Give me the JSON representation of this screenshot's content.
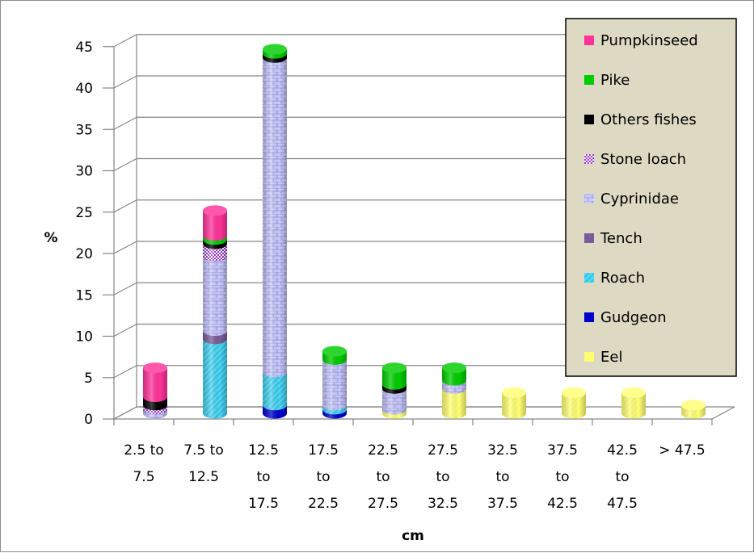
{
  "chart_data": {
    "type": "bar",
    "stacked": true,
    "style": "3d-cylinder",
    "ylabel": "%",
    "xlabel": "cm",
    "ylim": [
      0,
      45
    ],
    "yticks": [
      0,
      5,
      10,
      15,
      20,
      25,
      30,
      35,
      40,
      45
    ],
    "grid": true,
    "legend_position": "right",
    "categories": [
      [
        "2.5 to",
        "7.5"
      ],
      [
        "7.5 to",
        "12.5"
      ],
      [
        "12.5",
        "to",
        "17.5"
      ],
      [
        "17.5",
        "to",
        "22.5"
      ],
      [
        "22.5",
        "to",
        "27.5"
      ],
      [
        "27.5",
        "to",
        "32.5"
      ],
      [
        "32.5",
        "to",
        "37.5"
      ],
      [
        "37.5",
        "to",
        "42.5"
      ],
      [
        "42.5",
        "to",
        "47.5"
      ],
      [
        "> 47.5"
      ]
    ],
    "series": [
      {
        "name": "Eel",
        "color": "#ffff66",
        "pattern": "diag",
        "values": [
          0,
          0,
          0,
          0,
          0.5,
          3,
          2.5,
          2.5,
          2.5,
          1
        ]
      },
      {
        "name": "Gudgeon",
        "color": "#0000cc",
        "pattern": "solid",
        "values": [
          0,
          0,
          1,
          0.5,
          0,
          0,
          0,
          0,
          0,
          0
        ]
      },
      {
        "name": "Roach",
        "color": "#33ccee",
        "pattern": "diag",
        "values": [
          0,
          9,
          4,
          0.5,
          0,
          0,
          0,
          0,
          0,
          0
        ]
      },
      {
        "name": "Tench",
        "color": "#7a5c9a",
        "pattern": "solid",
        "values": [
          0,
          1,
          0,
          0,
          0,
          0,
          0,
          0,
          0,
          0
        ]
      },
      {
        "name": "Cyprinidae",
        "color": "#ccccff",
        "pattern": "brick",
        "values": [
          0.5,
          9,
          38,
          5.5,
          2.5,
          1,
          0,
          0,
          0,
          0
        ]
      },
      {
        "name": "Stone loach",
        "color": "#9933cc",
        "pattern": "check",
        "values": [
          0.5,
          1.5,
          0,
          0,
          0,
          0,
          0,
          0,
          0,
          0
        ]
      },
      {
        "name": "Others fishes",
        "color": "#000000",
        "pattern": "solid",
        "values": [
          1,
          0.5,
          0.5,
          0,
          0.5,
          0,
          0,
          0,
          0,
          0
        ]
      },
      {
        "name": "Pike",
        "color": "#00cc00",
        "pattern": "solid",
        "values": [
          0,
          0.5,
          0.5,
          1,
          2,
          1.5,
          0,
          0,
          0,
          0
        ]
      },
      {
        "name": "Pumpkinseed",
        "color": "#ff3399",
        "pattern": "solid",
        "values": [
          3.5,
          3,
          0,
          0,
          0,
          0,
          0,
          0,
          0,
          0
        ]
      }
    ]
  }
}
